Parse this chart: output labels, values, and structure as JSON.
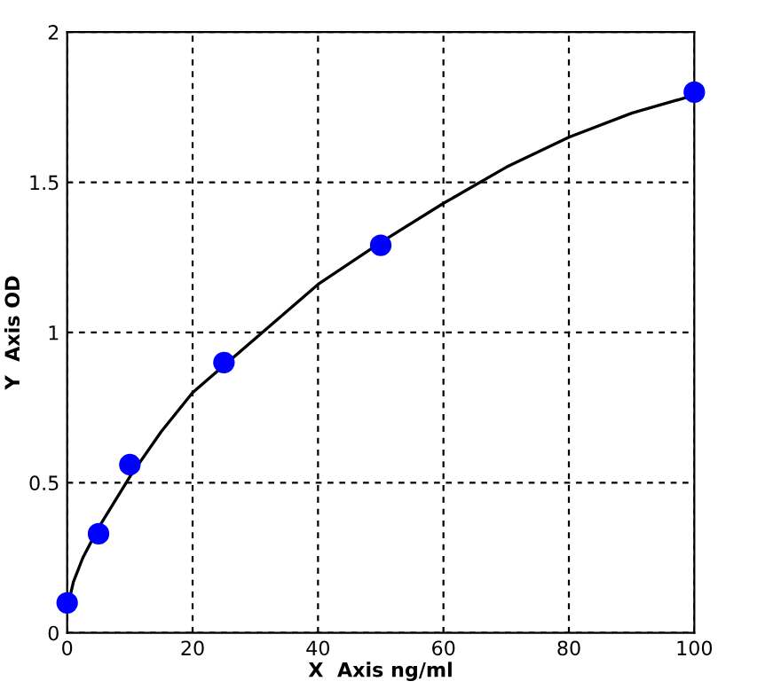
{
  "chart_data": {
    "type": "line",
    "xlabel": "X  Axis ng/ml",
    "ylabel": "Y  Axis OD",
    "xlim": [
      0,
      100
    ],
    "ylim": [
      0,
      2
    ],
    "xticks": [
      0,
      20,
      40,
      60,
      80,
      100
    ],
    "yticks": [
      0,
      0.5,
      1,
      1.5,
      2
    ],
    "grid": true,
    "series": [
      {
        "color": "#000000",
        "marker": "none",
        "line_style": "solid",
        "x": [
          0,
          1,
          2.5,
          5,
          10,
          15,
          20,
          30,
          40,
          50,
          60,
          70,
          80,
          90,
          100
        ],
        "values": [
          0.08,
          0.17,
          0.25,
          0.35,
          0.52,
          0.67,
          0.8,
          0.98,
          1.16,
          1.3,
          1.43,
          1.55,
          1.65,
          1.73,
          1.79
        ]
      },
      {
        "type": "scatter",
        "color": "#0000ff",
        "marker": "circle",
        "x": [
          0,
          5,
          10,
          25,
          50,
          100
        ],
        "values": [
          0.1,
          0.33,
          0.56,
          0.9,
          1.29,
          1.8
        ]
      }
    ]
  }
}
